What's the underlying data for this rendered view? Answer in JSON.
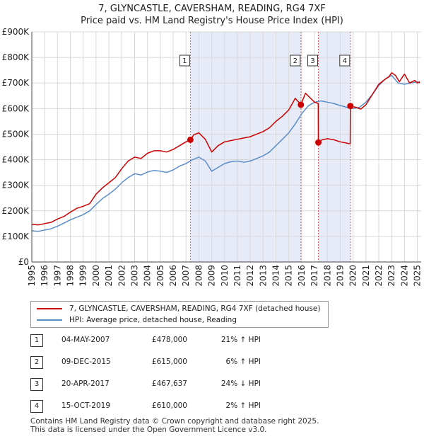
{
  "title_line1": "7, GLYNCASTLE, CAVERSHAM, READING, RG4 7XF",
  "title_line2": "Price paid vs. HM Land Registry's House Price Index (HPI)",
  "chart_data": {
    "type": "line",
    "title": "7, GLYNCASTLE, CAVERSHAM, READING, RG4 7XF — Price paid vs. HM Land Registry's House Price Index (HPI)",
    "xlabel": "",
    "ylabel": "",
    "xlim": [
      1995,
      2025.3
    ],
    "ylim": [
      0,
      900000
    ],
    "x_ticks": [
      "1995",
      "1996",
      "1997",
      "1998",
      "1999",
      "2000",
      "2001",
      "2002",
      "2003",
      "2004",
      "2005",
      "2006",
      "2007",
      "2008",
      "2009",
      "2010",
      "2011",
      "2012",
      "2013",
      "2014",
      "2015",
      "2016",
      "2017",
      "2018",
      "2019",
      "2020",
      "2021",
      "2022",
      "2023",
      "2024",
      "2025"
    ],
    "y_ticks": [
      {
        "value": 0,
        "label": "£0"
      },
      {
        "value": 100000,
        "label": "£100K"
      },
      {
        "value": 200000,
        "label": "£200K"
      },
      {
        "value": 300000,
        "label": "£300K"
      },
      {
        "value": 400000,
        "label": "£400K"
      },
      {
        "value": 500000,
        "label": "£500K"
      },
      {
        "value": 600000,
        "label": "£600K"
      },
      {
        "value": 700000,
        "label": "£700K"
      },
      {
        "value": 800000,
        "label": "£800K"
      },
      {
        "value": 900000,
        "label": "£900K"
      }
    ],
    "shaded_ranges": [
      [
        2007.34,
        2015.94
      ],
      [
        2017.3,
        2019.79
      ]
    ],
    "series": [
      {
        "name": "7, GLYNCASTLE, CAVERSHAM, READING, RG4 7XF (detached house)",
        "color": "#cc0000",
        "x": [
          1995.0,
          1995.5,
          1996.0,
          1996.5,
          1997.0,
          1997.5,
          1998.0,
          1998.5,
          1999.0,
          1999.5,
          2000.0,
          2000.5,
          2001.0,
          2001.5,
          2002.0,
          2002.5,
          2003.0,
          2003.5,
          2004.0,
          2004.5,
          2005.0,
          2005.5,
          2006.0,
          2006.5,
          2007.0,
          2007.34,
          2007.6,
          2008.0,
          2008.5,
          2009.0,
          2009.5,
          2010.0,
          2010.5,
          2011.0,
          2011.5,
          2012.0,
          2012.5,
          2013.0,
          2013.5,
          2014.0,
          2014.5,
          2015.0,
          2015.5,
          2015.94,
          2016.3,
          2016.7,
          2017.0,
          2017.29,
          2017.3,
          2017.6,
          2018.0,
          2018.5,
          2019.0,
          2019.5,
          2019.78,
          2019.79,
          2020.2,
          2020.6,
          2021.0,
          2021.5,
          2022.0,
          2022.5,
          2022.8,
          2023.0,
          2023.3,
          2023.6,
          2024.0,
          2024.4,
          2024.8,
          2025.0,
          2025.2
        ],
        "y": [
          148000,
          145000,
          150000,
          155000,
          168000,
          178000,
          195000,
          210000,
          218000,
          228000,
          265000,
          290000,
          310000,
          330000,
          365000,
          395000,
          410000,
          405000,
          425000,
          435000,
          435000,
          430000,
          440000,
          455000,
          470000,
          478000,
          497000,
          505000,
          480000,
          430000,
          455000,
          470000,
          475000,
          480000,
          485000,
          490000,
          500000,
          510000,
          525000,
          550000,
          570000,
          595000,
          640000,
          615000,
          660000,
          640000,
          625000,
          620000,
          467637,
          478000,
          482000,
          478000,
          470000,
          465000,
          462000,
          610000,
          605000,
          598000,
          615000,
          655000,
          695000,
          715000,
          725000,
          740000,
          730000,
          705000,
          735000,
          700000,
          710000,
          700000,
          705000
        ]
      },
      {
        "name": "HPI: Average price, detached house, Reading",
        "color": "#5b8ec9",
        "x": [
          1995.0,
          1995.5,
          1996.0,
          1996.5,
          1997.0,
          1997.5,
          1998.0,
          1998.5,
          1999.0,
          1999.5,
          2000.0,
          2000.5,
          2001.0,
          2001.5,
          2002.0,
          2002.5,
          2003.0,
          2003.5,
          2004.0,
          2004.5,
          2005.0,
          2005.5,
          2006.0,
          2006.5,
          2007.0,
          2007.5,
          2008.0,
          2008.5,
          2009.0,
          2009.5,
          2010.0,
          2010.5,
          2011.0,
          2011.5,
          2012.0,
          2012.5,
          2013.0,
          2013.5,
          2014.0,
          2014.5,
          2015.0,
          2015.5,
          2016.0,
          2016.5,
          2017.0,
          2017.5,
          2018.0,
          2018.5,
          2019.0,
          2019.5,
          2020.0,
          2020.5,
          2021.0,
          2021.5,
          2022.0,
          2022.5,
          2023.0,
          2023.5,
          2024.0,
          2024.5,
          2025.0,
          2025.2
        ],
        "y": [
          122000,
          120000,
          125000,
          130000,
          140000,
          152000,
          165000,
          175000,
          185000,
          200000,
          225000,
          248000,
          265000,
          285000,
          310000,
          330000,
          345000,
          340000,
          352000,
          358000,
          355000,
          350000,
          360000,
          375000,
          385000,
          400000,
          410000,
          395000,
          355000,
          370000,
          385000,
          392000,
          395000,
          390000,
          395000,
          405000,
          415000,
          430000,
          455000,
          480000,
          505000,
          540000,
          580000,
          610000,
          625000,
          630000,
          625000,
          620000,
          612000,
          605000,
          600000,
          605000,
          625000,
          655000,
          690000,
          715000,
          730000,
          700000,
          695000,
          700000,
          705000,
          700000
        ]
      }
    ],
    "markers": [
      {
        "label": "1",
        "x": 2007.34,
        "y": 478000
      },
      {
        "label": "2",
        "x": 2015.94,
        "y": 615000
      },
      {
        "label": "3",
        "x": 2017.3,
        "y": 467637
      },
      {
        "label": "4",
        "x": 2019.79,
        "y": 610000
      }
    ]
  },
  "legend": {
    "property_label": "7, GLYNCASTLE, CAVERSHAM, READING, RG4 7XF (detached house)",
    "hpi_label": "HPI: Average price, detached house, Reading",
    "property_color": "#cc0000",
    "hpi_color": "#5b8ec9"
  },
  "sales": [
    {
      "num": "1",
      "date": "04-MAY-2007",
      "price": "£478,000",
      "hpi": "21% ↑ HPI"
    },
    {
      "num": "2",
      "date": "09-DEC-2015",
      "price": "£615,000",
      "hpi": "6% ↑ HPI"
    },
    {
      "num": "3",
      "date": "20-APR-2017",
      "price": "£467,637",
      "hpi": "24% ↓ HPI"
    },
    {
      "num": "4",
      "date": "15-OCT-2019",
      "price": "£610,000",
      "hpi": "2% ↑ HPI"
    }
  ],
  "footer": {
    "line1": "Contains HM Land Registry data © Crown copyright and database right 2025.",
    "line2": "This data is licensed under the Open Government Licence v3.0."
  }
}
